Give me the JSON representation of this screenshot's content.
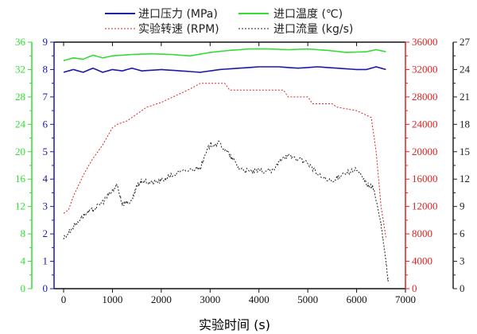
{
  "chart_data": {
    "type": "line",
    "xlabel": "实验时间 (s)",
    "xlim": [
      0,
      7000
    ],
    "xticks": [
      0,
      1000,
      2000,
      3000,
      4000,
      5000,
      6000,
      7000
    ],
    "legend_placement": "top",
    "axes": [
      {
        "id": "temp",
        "side": "left-outer",
        "color": "#33dd33",
        "ylim": [
          0,
          36
        ],
        "ticks": [
          0,
          4,
          8,
          12,
          16,
          20,
          24,
          28,
          32,
          36
        ]
      },
      {
        "id": "pressure",
        "side": "left-inner",
        "color": "#1a1aaa",
        "ylim": [
          0,
          9
        ],
        "ticks": [
          0,
          1,
          2,
          3,
          4,
          5,
          6,
          7,
          8,
          9
        ]
      },
      {
        "id": "rpm",
        "side": "right-inner",
        "color": "#dd2222",
        "ylim": [
          0,
          36000
        ],
        "ticks": [
          0,
          4000,
          8000,
          12000,
          16000,
          20000,
          24000,
          28000,
          32000,
          36000
        ]
      },
      {
        "id": "flow",
        "side": "right-outer",
        "color": "#222222",
        "ylim": [
          0,
          27
        ],
        "ticks": [
          0,
          3,
          6,
          9,
          12,
          15,
          18,
          21,
          24,
          27
        ]
      }
    ],
    "series": [
      {
        "name": "进口压力 (MPa)",
        "axis": "pressure",
        "style": "solid",
        "color": "#1a1aaa",
        "x": [
          0,
          200,
          400,
          600,
          800,
          1000,
          1200,
          1400,
          1600,
          2000,
          2400,
          2800,
          3200,
          3600,
          4000,
          4400,
          4800,
          5200,
          5600,
          6000,
          6200,
          6400,
          6600
        ],
        "y": [
          7.9,
          8.0,
          7.9,
          8.05,
          7.9,
          8.0,
          7.95,
          8.05,
          7.95,
          8.0,
          7.95,
          7.9,
          8.0,
          8.05,
          8.1,
          8.1,
          8.05,
          8.1,
          8.05,
          8.0,
          8.0,
          8.1,
          8.0
        ]
      },
      {
        "name": "进口温度 (℃)",
        "axis": "temp",
        "style": "solid",
        "color": "#33dd33",
        "x": [
          0,
          200,
          400,
          600,
          800,
          1000,
          1400,
          1800,
          2200,
          2600,
          3000,
          3400,
          3800,
          4200,
          4600,
          5000,
          5400,
          5800,
          6200,
          6400,
          6600
        ],
        "y": [
          33.3,
          33.7,
          33.5,
          34.1,
          33.7,
          34.0,
          34.2,
          34.3,
          34.2,
          34.0,
          34.5,
          34.8,
          35.0,
          35.0,
          34.9,
          35.0,
          34.8,
          34.5,
          34.6,
          34.9,
          34.6
        ]
      },
      {
        "name": "实验转速 (RPM)",
        "axis": "rpm",
        "style": "dotted",
        "color": "#dd2222",
        "x": [
          0,
          100,
          200,
          300,
          400,
          500,
          600,
          800,
          1000,
          1100,
          1300,
          1500,
          1700,
          2000,
          2300,
          2600,
          2800,
          3300,
          3400,
          4000,
          4500,
          4600,
          5000,
          5100,
          5500,
          5600,
          6000,
          6300,
          6400,
          6500,
          6600
        ],
        "y": [
          11000,
          11500,
          13500,
          15000,
          16500,
          17800,
          19000,
          21000,
          23500,
          24000,
          24500,
          25500,
          26500,
          27200,
          28200,
          29200,
          30000,
          30000,
          29000,
          29000,
          29000,
          28000,
          28000,
          27000,
          27000,
          26500,
          26000,
          25000,
          20000,
          12000,
          7500
        ]
      },
      {
        "name": "进口流量 (kg/s)",
        "axis": "flow",
        "style": "dotted",
        "color": "#222222",
        "x": [
          0,
          200,
          400,
          600,
          800,
          1000,
          1100,
          1200,
          1400,
          1500,
          1600,
          1800,
          2000,
          2200,
          2500,
          2800,
          3000,
          3200,
          3400,
          3600,
          3800,
          4000,
          4300,
          4500,
          4700,
          5000,
          5200,
          5500,
          5700,
          6000,
          6200,
          6350,
          6500,
          6600,
          6650
        ],
        "y": [
          5.5,
          6.8,
          8.0,
          8.6,
          9.5,
          10.7,
          11.3,
          9.3,
          9.6,
          11.2,
          11.8,
          11.6,
          11.8,
          12.4,
          12.9,
          13.3,
          15.8,
          15.9,
          14.6,
          13.2,
          12.8,
          12.9,
          12.9,
          14.6,
          14.4,
          13.8,
          12.5,
          11.6,
          12.6,
          13.0,
          11.5,
          11.0,
          7.0,
          3.0,
          0.7
        ]
      }
    ]
  }
}
